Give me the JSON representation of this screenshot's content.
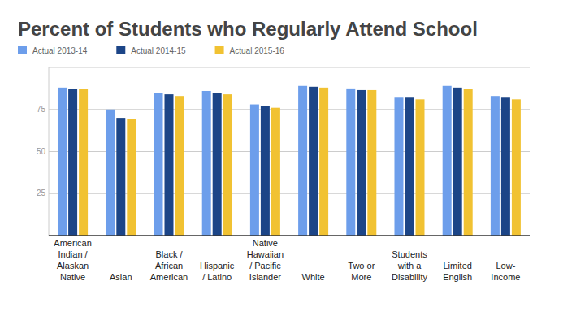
{
  "chart_data": {
    "type": "bar",
    "title": "Percent of Students who Regularly Attend School",
    "categories": [
      "American\nIndian /\nAlaskan\nNative",
      "Asian",
      "Black /\nAfrican\nAmerican",
      "Hispanic\n/ Latino",
      "Native\nHawaiian\n/ Pacific\nIslander",
      "White",
      "Two or\nMore",
      "Students\nwith a\nDisability",
      "Limited\nEnglish",
      "Low-\nIncome"
    ],
    "series": [
      {
        "name": "Actual 2013-14",
        "color": "#6d9eeb",
        "values": [
          88,
          75,
          85,
          86,
          78,
          89,
          87.5,
          82,
          89,
          83
        ]
      },
      {
        "name": "Actual 2014-15",
        "color": "#1c4587",
        "values": [
          87,
          70,
          84,
          85,
          77,
          88.5,
          86.5,
          82,
          88,
          82
        ]
      },
      {
        "name": "Actual 2015-16",
        "color": "#f1c232",
        "values": [
          87,
          69.5,
          83,
          84,
          76,
          88,
          86.5,
          81,
          87,
          81
        ]
      }
    ],
    "ylim": [
      0,
      100
    ],
    "yticks": [
      25,
      50,
      75
    ],
    "grid": true,
    "legend": "top"
  }
}
